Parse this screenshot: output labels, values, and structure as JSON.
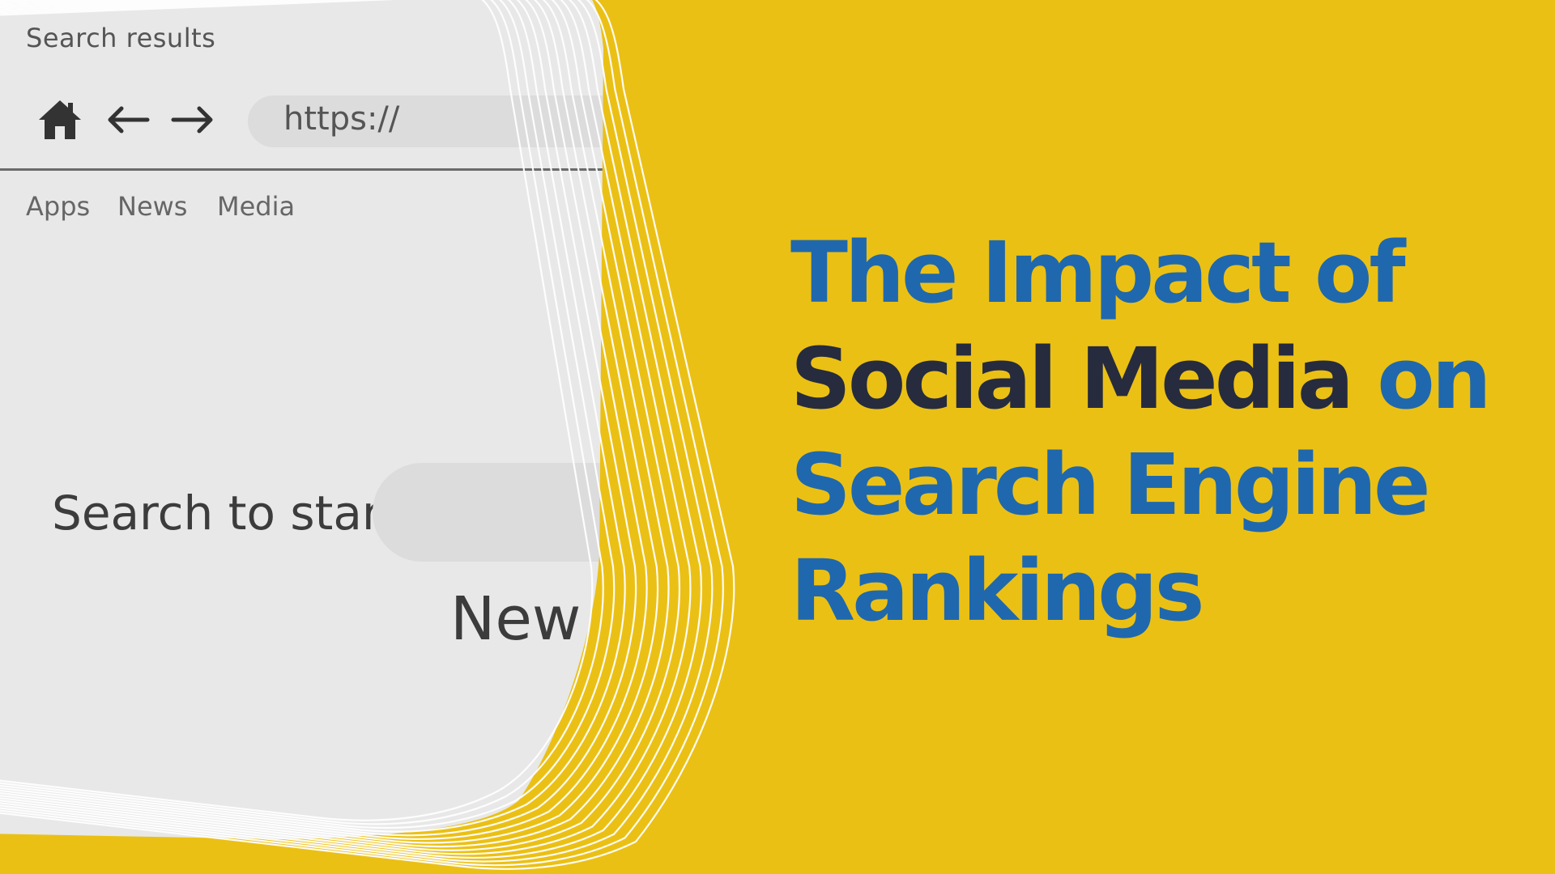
{
  "browser": {
    "title": "Search results",
    "url_text": "https://",
    "bookmarks": [
      "Apps",
      "News",
      "Media"
    ],
    "search_label": "Search to start",
    "partial_text": "New",
    "icons": [
      "home-icon",
      "back-arrow-icon",
      "forward-arrow-icon"
    ]
  },
  "headline": {
    "line1": "The Impact of",
    "line2_dark": "Social Media",
    "line2_blue": "on",
    "line3": "Search Engine",
    "line4": "Rankings"
  },
  "colors": {
    "background_yellow": "#ebc015",
    "panel_gray": "#e8e8e8",
    "headline_blue": "#1f68ae",
    "headline_dark": "#262b3e"
  }
}
